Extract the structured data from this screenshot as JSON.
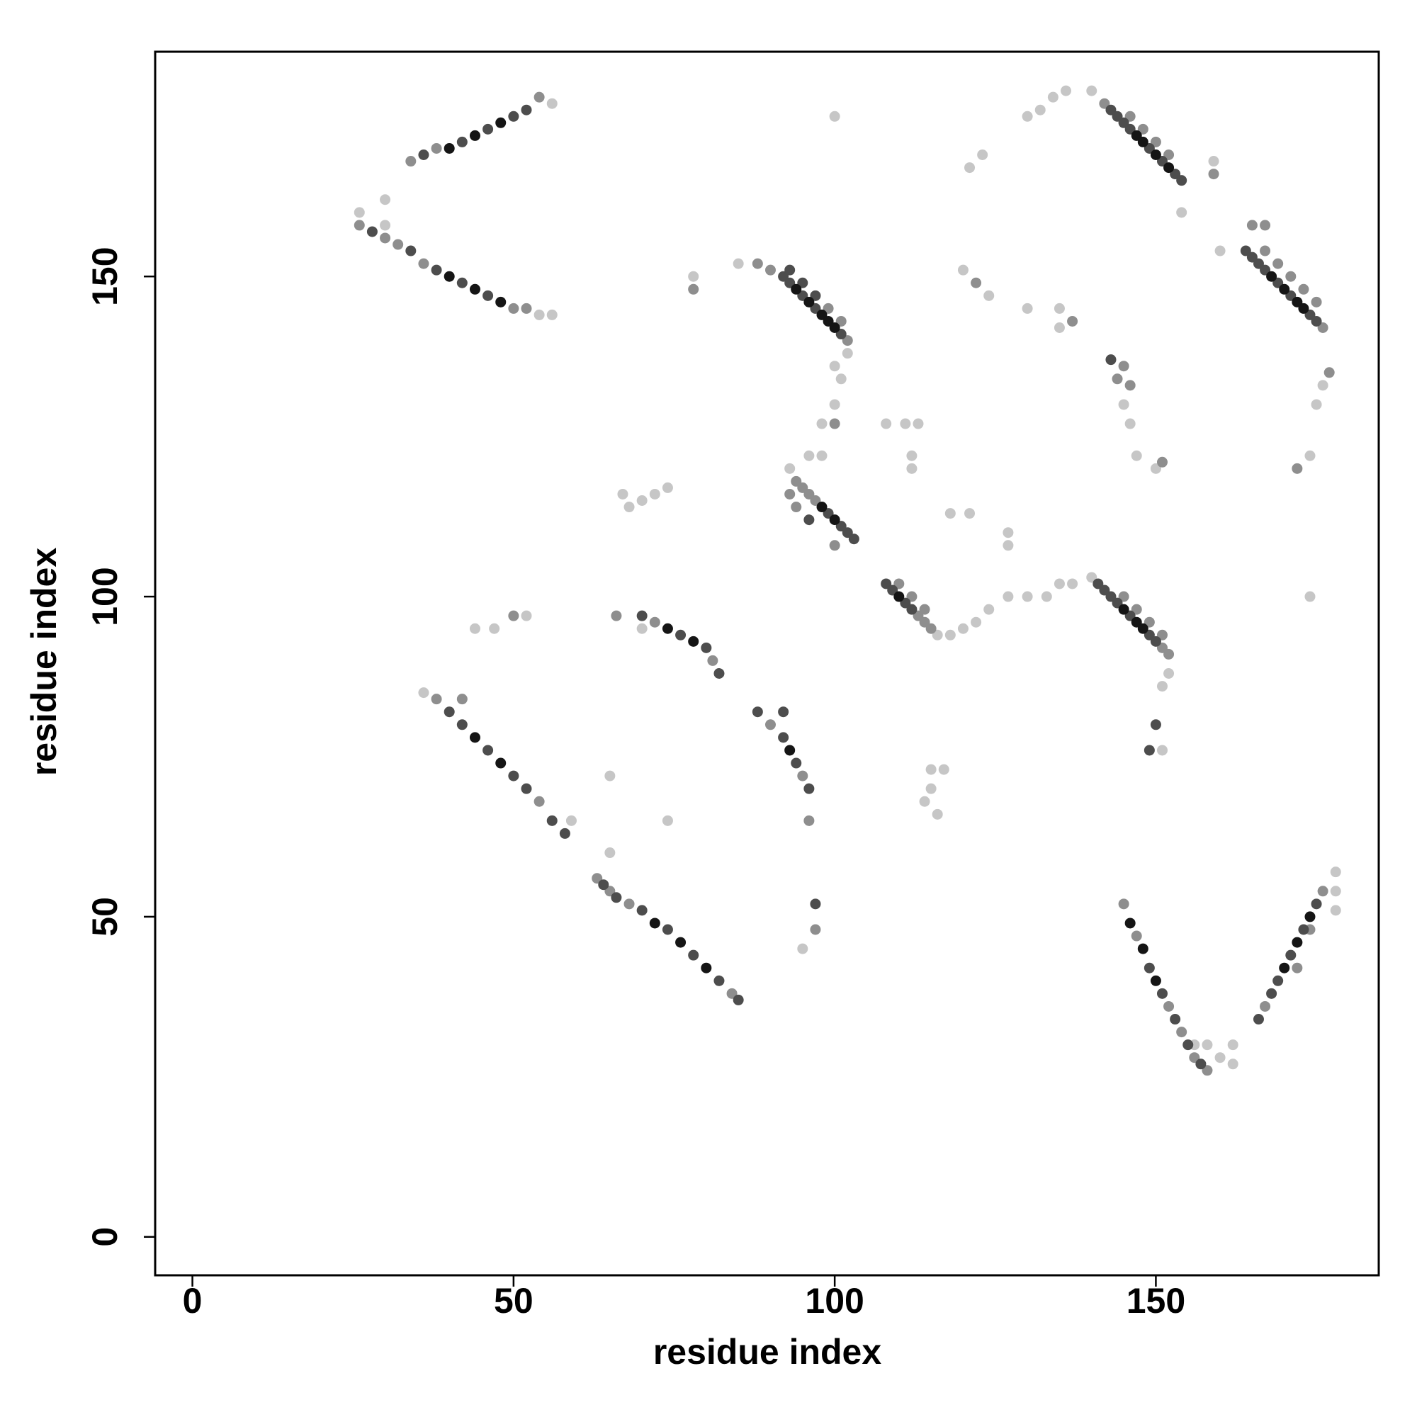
{
  "chart_data": {
    "type": "scatter",
    "xlabel": "residue index",
    "ylabel": "residue index",
    "xlim": [
      -5.8,
      184.7
    ],
    "ylim": [
      -6,
      185.1
    ],
    "xticks": [
      0,
      50,
      100,
      150
    ],
    "yticks": [
      0,
      50,
      100,
      150
    ],
    "grid": false,
    "series": [
      {
        "color": "#c6c6c6",
        "x": [
          56,
          26,
          30,
          30,
          54,
          56,
          78,
          85,
          100,
          101,
          102,
          100,
          98,
          96,
          98,
          93,
          116,
          118,
          120,
          122,
          124,
          127,
          130,
          133,
          135,
          137,
          140,
          152,
          151,
          154,
          159,
          160,
          178,
          178,
          178,
          156,
          158,
          160,
          162,
          162,
          36,
          59,
          65,
          65,
          74,
          70,
          47,
          52,
          44,
          95,
          67,
          70,
          72,
          74,
          68,
          108,
          111,
          113,
          112,
          112,
          118,
          121,
          127,
          127,
          115,
          117,
          114,
          116,
          115,
          120,
          124,
          121,
          123,
          130,
          132,
          134,
          136,
          140,
          130,
          135,
          135,
          145,
          146,
          147,
          150,
          176,
          175,
          174,
          174,
          151,
          100
        ],
        "values": [
          177,
          160,
          162,
          158,
          144,
          144,
          150,
          152,
          136,
          134,
          138,
          130,
          127,
          122,
          122,
          120,
          94,
          94,
          95,
          96,
          98,
          100,
          100,
          100,
          102,
          102,
          103,
          88,
          86,
          160,
          168,
          154,
          54,
          57,
          51,
          30,
          30,
          28,
          27,
          30,
          85,
          65,
          60,
          72,
          65,
          95,
          95,
          97,
          95,
          45,
          116,
          115,
          116,
          117,
          114,
          127,
          127,
          127,
          120,
          122,
          113,
          113,
          110,
          108,
          73,
          73,
          68,
          66,
          70,
          151,
          147,
          167,
          169,
          175,
          176,
          178,
          179,
          179,
          145,
          145,
          142,
          130,
          127,
          122,
          120,
          133,
          130,
          122,
          100,
          76,
          175
        ]
      },
      {
        "color": "#8e8e8e",
        "x": [
          34,
          38,
          54,
          26,
          30,
          32,
          36,
          50,
          52,
          88,
          90,
          102,
          101,
          99,
          94,
          95,
          96,
          97,
          93,
          94,
          100,
          113,
          114,
          115,
          110,
          112,
          114,
          151,
          152,
          145,
          147,
          149,
          151,
          142,
          146,
          148,
          150,
          152,
          159,
          176,
          167,
          169,
          171,
          173,
          175,
          165,
          167,
          145,
          147,
          152,
          154,
          156,
          158,
          167,
          176,
          172,
          174,
          38,
          54,
          63,
          65,
          68,
          84,
          42,
          72,
          81,
          66,
          50,
          90,
          95,
          96,
          97,
          78,
          100,
          146,
          151,
          177,
          172,
          145,
          144,
          122,
          137
        ],
        "values": [
          168,
          170,
          178,
          158,
          156,
          155,
          152,
          145,
          145,
          152,
          151,
          140,
          143,
          145,
          118,
          117,
          116,
          115,
          116,
          114,
          108,
          97,
          96,
          95,
          102,
          100,
          98,
          92,
          91,
          100,
          98,
          96,
          94,
          177,
          175,
          173,
          171,
          169,
          166,
          142,
          154,
          152,
          150,
          148,
          146,
          158,
          158,
          52,
          47,
          36,
          32,
          28,
          26,
          36,
          54,
          42,
          48,
          84,
          68,
          56,
          54,
          52,
          38,
          84,
          96,
          90,
          97,
          97,
          80,
          72,
          65,
          48,
          148,
          127,
          133,
          121,
          135,
          120,
          136,
          134,
          149,
          143
        ]
      },
      {
        "color": "#4d4d4d",
        "x": [
          36,
          42,
          46,
          50,
          52,
          28,
          34,
          38,
          42,
          46,
          92,
          93,
          95,
          97,
          101,
          93,
          95,
          97,
          99,
          101,
          102,
          103,
          96,
          108,
          109,
          111,
          112,
          141,
          142,
          143,
          144,
          146,
          149,
          150,
          143,
          144,
          145,
          146,
          149,
          151,
          153,
          154,
          165,
          166,
          167,
          169,
          171,
          174,
          175,
          149,
          151,
          153,
          155,
          157,
          166,
          168,
          169,
          171,
          173,
          175,
          40,
          42,
          46,
          50,
          52,
          56,
          58,
          64,
          66,
          70,
          74,
          78,
          82,
          85,
          70,
          76,
          80,
          82,
          88,
          92,
          94,
          96,
          92,
          97,
          150,
          149,
          143,
          164
        ],
        "values": [
          169,
          171,
          173,
          175,
          176,
          157,
          154,
          151,
          149,
          147,
          150,
          149,
          147,
          145,
          141,
          151,
          149,
          147,
          113,
          111,
          110,
          109,
          112,
          102,
          101,
          99,
          98,
          102,
          101,
          100,
          99,
          97,
          94,
          93,
          176,
          175,
          174,
          173,
          170,
          168,
          166,
          165,
          153,
          152,
          151,
          149,
          147,
          144,
          143,
          42,
          38,
          34,
          30,
          27,
          34,
          38,
          40,
          44,
          48,
          52,
          82,
          80,
          76,
          72,
          70,
          65,
          63,
          55,
          53,
          51,
          48,
          44,
          40,
          37,
          97,
          94,
          92,
          88,
          82,
          78,
          74,
          70,
          82,
          52,
          80,
          76,
          137,
          154
        ]
      },
      {
        "color": "#151515",
        "x": [
          40,
          44,
          48,
          40,
          44,
          48,
          94,
          96,
          98,
          99,
          100,
          98,
          100,
          110,
          145,
          147,
          148,
          147,
          148,
          150,
          152,
          168,
          170,
          172,
          173,
          146,
          148,
          150,
          170,
          172,
          174,
          44,
          48,
          72,
          76,
          80,
          74,
          78,
          93
        ],
        "values": [
          170,
          172,
          174,
          150,
          148,
          146,
          148,
          146,
          144,
          143,
          142,
          114,
          112,
          100,
          98,
          96,
          95,
          172,
          171,
          169,
          167,
          150,
          148,
          146,
          145,
          49,
          45,
          40,
          42,
          46,
          50,
          78,
          74,
          49,
          46,
          42,
          95,
          93,
          76
        ]
      }
    ]
  }
}
